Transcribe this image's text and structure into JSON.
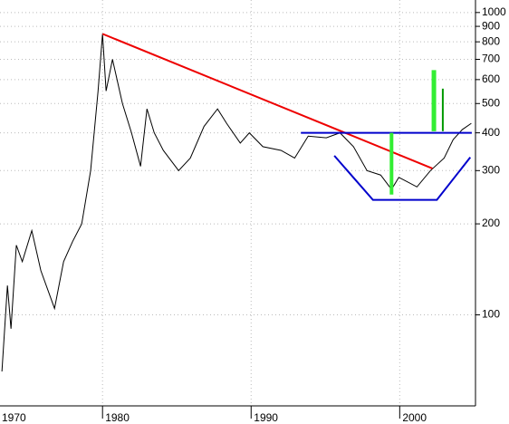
{
  "chart_data": {
    "type": "line",
    "log_scale": true,
    "grid": true,
    "axis_side": "right",
    "xlim": [
      1973.1,
      2005.1
    ],
    "xticks": [
      1970,
      1980,
      1990,
      2000
    ],
    "ylim": [
      50,
      1100
    ],
    "yticks": [
      100,
      200,
      300,
      400,
      500,
      600,
      700,
      800,
      900,
      1000
    ],
    "series": [
      {
        "color": "#000000",
        "x": [
          1973.23,
          1973.6,
          1973.84,
          1974.2,
          1974.6,
          1975.24,
          1975.85,
          1976.77,
          1977.38,
          1977.99,
          1978.6,
          1979.2,
          1979.7,
          1980.0,
          1980.24,
          1980.67,
          1981.34,
          1981.95,
          1982.56,
          1982.99,
          1983.48,
          1984.09,
          1985.12,
          1985.91,
          1986.83,
          1987.74,
          1988.35,
          1989.27,
          1989.88,
          1990.79,
          1992.01,
          1992.93,
          1993.84,
          1995.06,
          1995.98,
          1996.89,
          1997.8,
          1998.72,
          1999.45,
          1999.94,
          2000.24,
          2001.16,
          2002.07,
          2002.99,
          2003.6,
          2004.21,
          2004.82
        ],
        "values": [
          65,
          125,
          90,
          170,
          150,
          190,
          140,
          105,
          150,
          175,
          200,
          300,
          550,
          850,
          550,
          700,
          500,
          400,
          310,
          480,
          400,
          350,
          300,
          330,
          420,
          480,
          430,
          370,
          400,
          360,
          350,
          330,
          390,
          385,
          400,
          360,
          300,
          290,
          260,
          285,
          280,
          265,
          300,
          330,
          380,
          410,
          430
        ]
      }
    ],
    "overlays": [
      {
        "color": "#ee0000",
        "width": 2,
        "x": [
          1980.0,
          2002.2
        ],
        "values": [
          850,
          305
        ]
      },
      {
        "color": "#0000cc",
        "width": 2,
        "x": [
          1993.35,
          2004.85
        ],
        "values": [
          400,
          400
        ]
      },
      {
        "color": "#0000cc",
        "width": 2,
        "x": [
          1995.6,
          1998.2,
          2002.5,
          2004.75
        ],
        "values": [
          336,
          240,
          240,
          332
        ]
      },
      {
        "color": "#33ee33",
        "width": 4,
        "x": [
          1999.45,
          1999.45
        ],
        "values": [
          400,
          250
        ]
      },
      {
        "color": "#33ee33",
        "width": 5,
        "x": [
          2002.3,
          2002.3
        ],
        "values": [
          645,
          405
        ]
      },
      {
        "color": "#009900",
        "width": 2,
        "x": [
          2002.9,
          2002.9
        ],
        "values": [
          560,
          405
        ]
      }
    ]
  }
}
